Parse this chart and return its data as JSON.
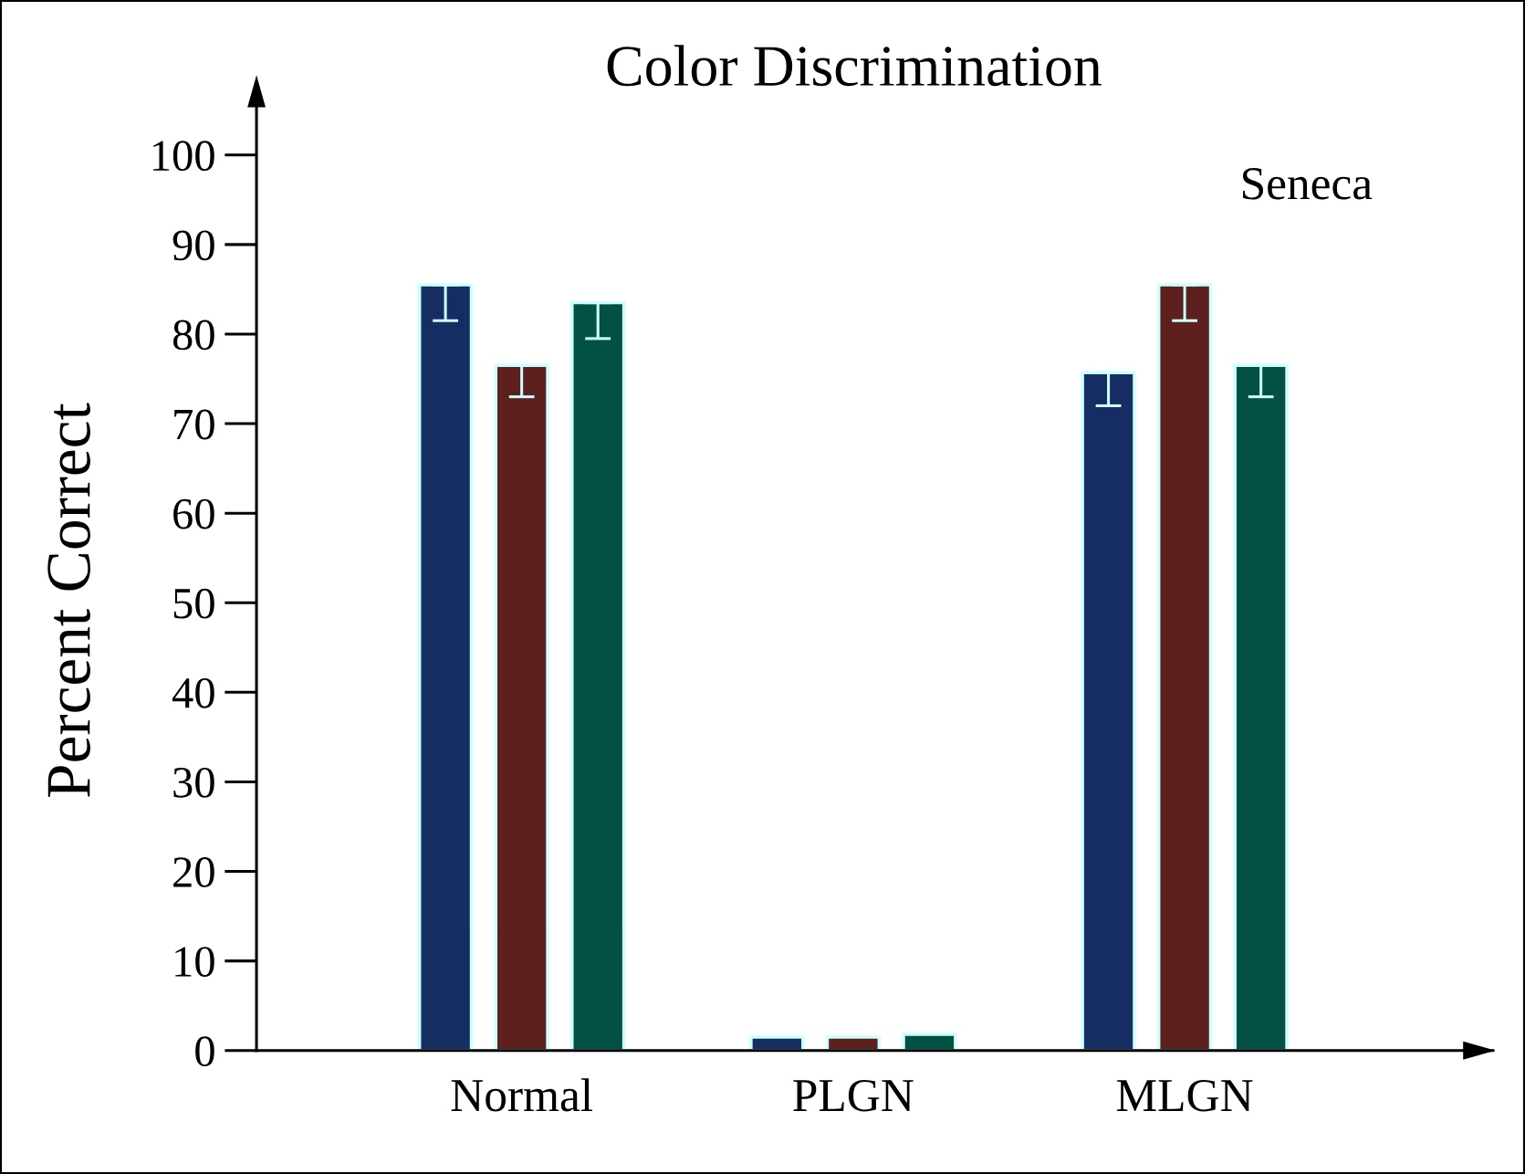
{
  "chart_data": {
    "type": "bar",
    "title": "Color Discrimination",
    "ylabel": "Percent Correct",
    "categories": [
      "Normal",
      "PLGN",
      "MLGN"
    ],
    "series": [
      {
        "color": "#152d62",
        "values": [
          85.5,
          1.5,
          75.7
        ],
        "errors": [
          [
            81.5,
            85.5
          ],
          null,
          [
            72,
            75.7
          ]
        ]
      },
      {
        "color": "#5e1f1f",
        "values": [
          76.5,
          1.5,
          85.5
        ],
        "errors": [
          [
            73,
            76.5
          ],
          null,
          [
            81.5,
            85.5
          ]
        ]
      },
      {
        "color": "#025144",
        "values": [
          83.5,
          1.8,
          76.5
        ],
        "errors": [
          [
            79.5,
            83.5
          ],
          null,
          [
            73,
            76.5
          ]
        ]
      }
    ],
    "ylim": [
      0,
      108
    ],
    "yticks": [
      0,
      10,
      20,
      30,
      40,
      50,
      60,
      70,
      80,
      90,
      100
    ],
    "annotations": [
      "Seneca"
    ]
  }
}
